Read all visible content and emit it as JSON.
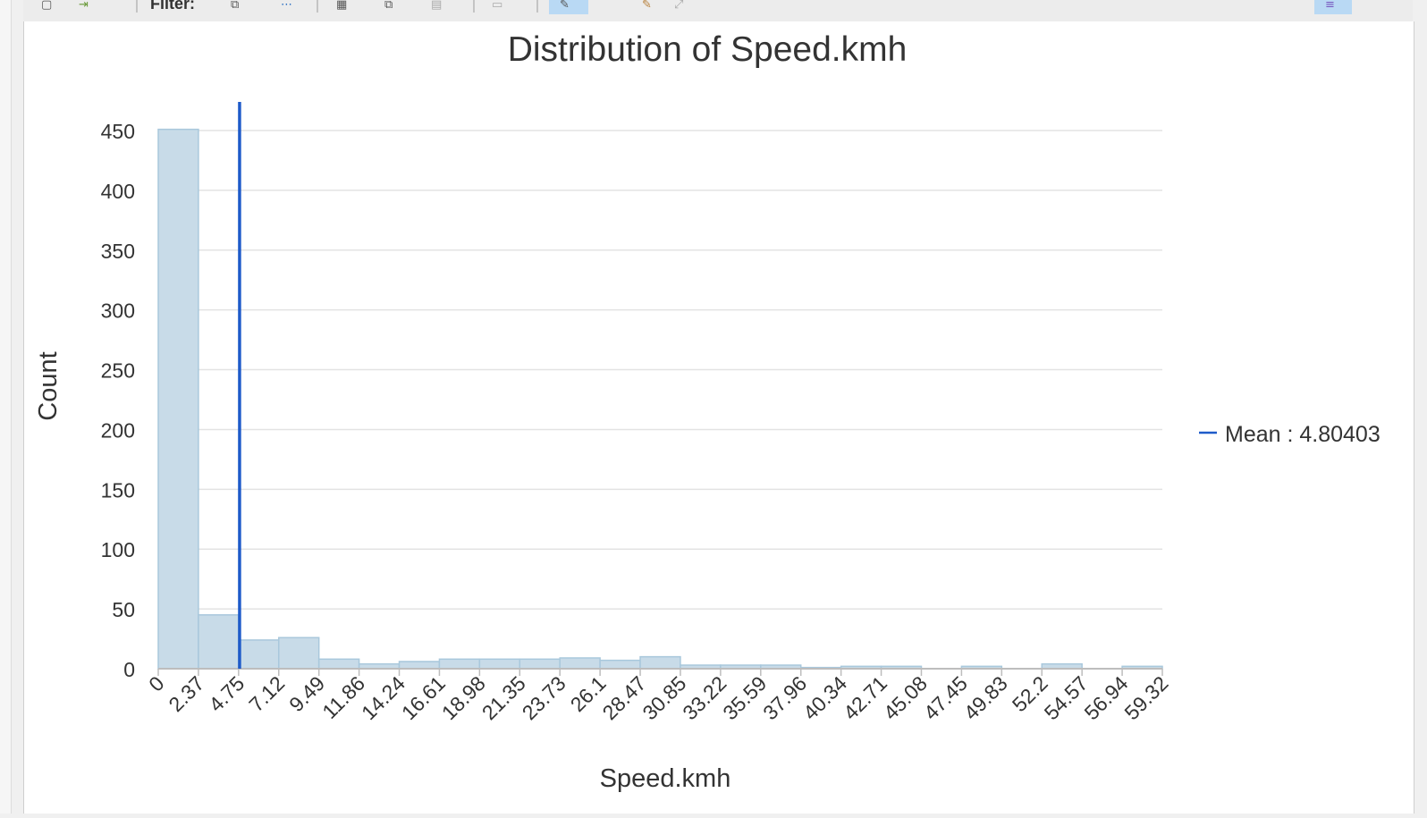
{
  "toolbar": {
    "filter_label": "Filter:",
    "icons": [
      "new-icon",
      "export-icon",
      "filter-select-icon",
      "filter-extent-icon",
      "table-icon",
      "copy-icon",
      "grid-icon",
      "chart-icon",
      "pointer-icon",
      "pan-icon",
      "zoom-icon",
      "properties-icon"
    ]
  },
  "chart_data": {
    "type": "bar",
    "title": "Distribution of Speed.kmh",
    "xlabel": "Speed.kmh",
    "ylabel": "Count",
    "x_ticks": [
      "0",
      "2.37",
      "4.75",
      "7.12",
      "9.49",
      "11.86",
      "14.24",
      "16.61",
      "18.98",
      "21.35",
      "23.73",
      "26.1",
      "28.47",
      "30.85",
      "33.22",
      "35.59",
      "37.96",
      "40.34",
      "42.71",
      "45.08",
      "47.45",
      "49.83",
      "52.2",
      "54.57",
      "56.94",
      "59.32"
    ],
    "y_ticks": [
      "0",
      "50",
      "100",
      "150",
      "200",
      "250",
      "300",
      "350",
      "400",
      "450"
    ],
    "values": [
      451,
      45,
      24,
      26,
      8,
      4,
      6,
      8,
      8,
      8,
      9,
      7,
      10,
      3,
      3,
      3,
      1,
      2,
      2,
      0,
      2,
      0,
      4,
      0,
      2
    ],
    "xlim": [
      0,
      59.32
    ],
    "ylim": [
      0,
      450
    ],
    "grid": true,
    "bar_color": "#c8dbe8",
    "bar_edge": "#a9c8dc",
    "mean": {
      "value": 4.80403,
      "label": "Mean : 4.80403",
      "color": "#1f5bc9"
    },
    "legend_position": "right"
  }
}
